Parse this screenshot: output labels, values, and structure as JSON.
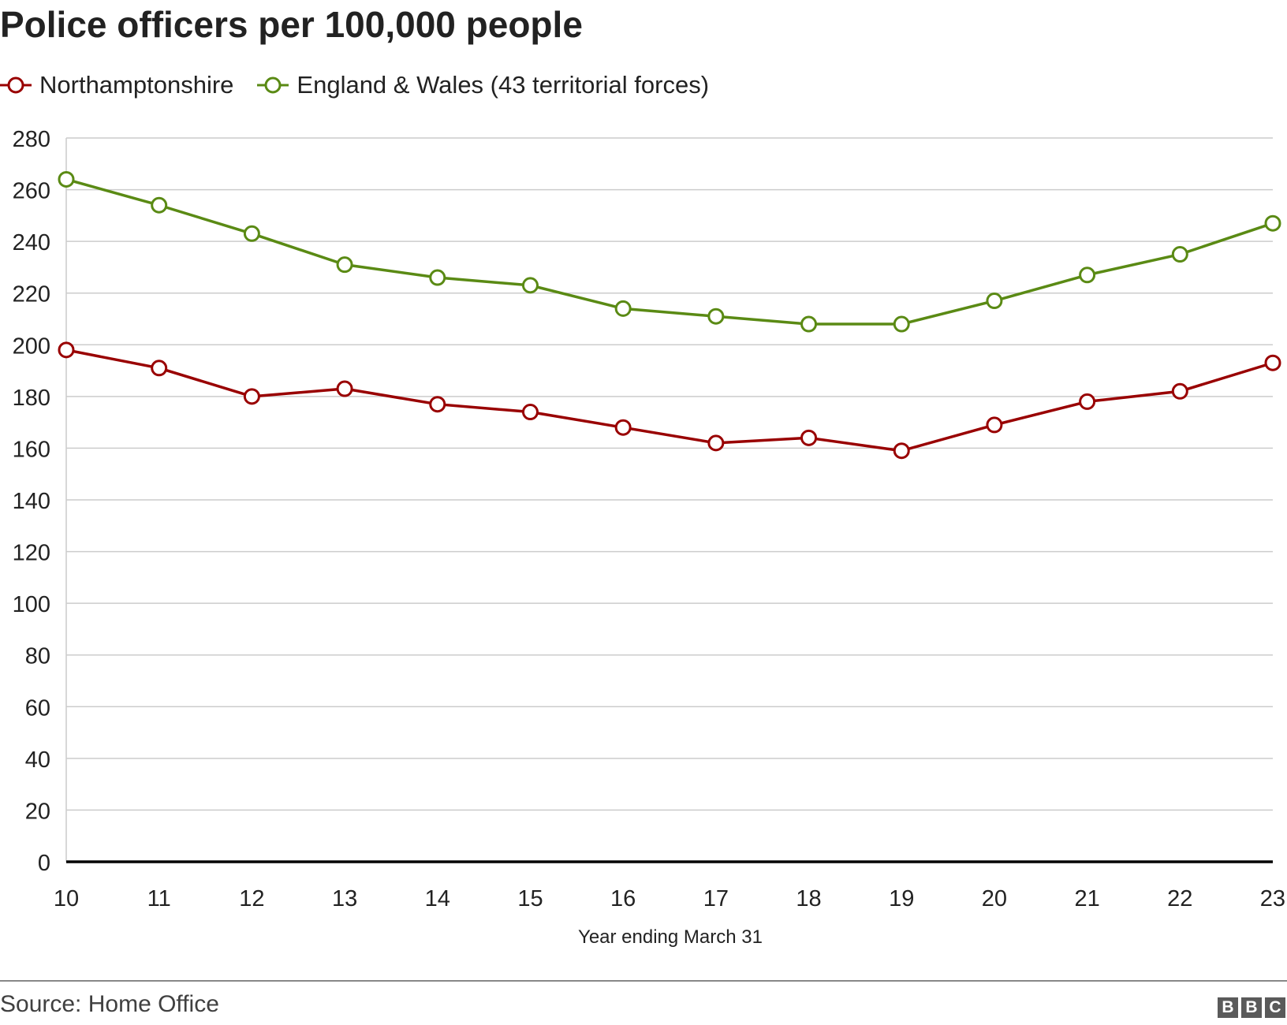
{
  "chart_data": {
    "type": "line",
    "title": "Police officers per 100,000 people",
    "xlabel": "Year ending March 31",
    "ylabel": "",
    "x": [
      "10",
      "11",
      "12",
      "13",
      "14",
      "15",
      "16",
      "17",
      "18",
      "19",
      "20",
      "21",
      "22",
      "23"
    ],
    "ylim": [
      0,
      280
    ],
    "yticks": [
      "0",
      "20",
      "40",
      "60",
      "80",
      "100",
      "120",
      "140",
      "160",
      "180",
      "200",
      "220",
      "240",
      "260",
      "280"
    ],
    "grid": true,
    "legend_position": "top-left",
    "series": [
      {
        "name": "Northamptonshire",
        "color": "#990000",
        "values": [
          198,
          191,
          180,
          183,
          177,
          174,
          168,
          162,
          164,
          159,
          169,
          178,
          182,
          193
        ]
      },
      {
        "name": "England & Wales (43 territorial forces)",
        "color": "#5a8a14",
        "values": [
          264,
          254,
          243,
          231,
          226,
          223,
          214,
          211,
          208,
          208,
          217,
          227,
          235,
          247
        ]
      }
    ]
  },
  "footer": {
    "source": "Source: Home Office",
    "logo": [
      "B",
      "B",
      "C"
    ]
  }
}
